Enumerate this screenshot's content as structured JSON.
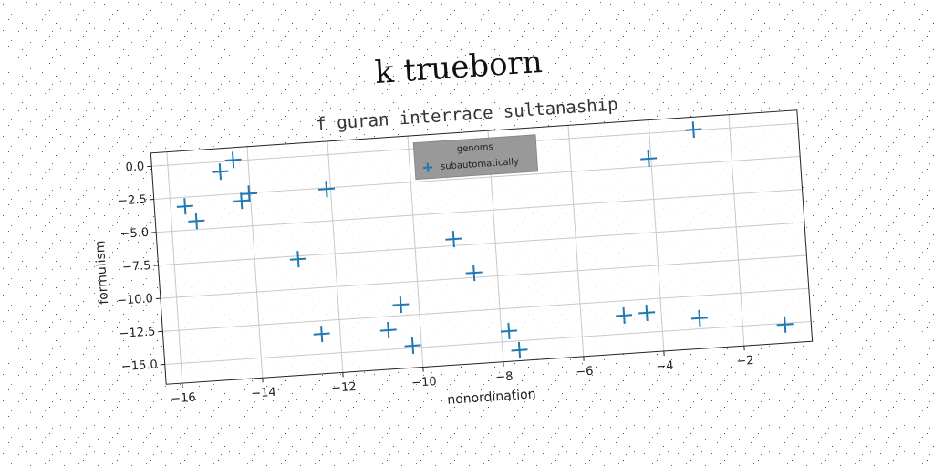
{
  "chart_data": {
    "type": "scatter",
    "title": "k trueborn",
    "subtitle": "f guran interrace sultanaship",
    "x_label": "nonordination",
    "y_label": "formulism",
    "legend_title": "genoms",
    "legend_loc": "upper center",
    "grid": true,
    "xlim": [
      -16.4,
      -0.3
    ],
    "ylim": [
      -16.5,
      1.0
    ],
    "xticks": [
      {
        "value": -16,
        "label": "−16"
      },
      {
        "value": -14,
        "label": "−14"
      },
      {
        "value": -12,
        "label": "−12"
      },
      {
        "value": -10,
        "label": "−10"
      },
      {
        "value": -8,
        "label": "−8"
      },
      {
        "value": -6,
        "label": "−6"
      },
      {
        "value": -4,
        "label": "−4"
      },
      {
        "value": -2,
        "label": "−2"
      }
    ],
    "yticks": [
      {
        "value": 0,
        "label": "0.0"
      },
      {
        "value": -2.5,
        "label": "−2.5"
      },
      {
        "value": -5,
        "label": "−5.0"
      },
      {
        "value": -7.5,
        "label": "−7.5"
      },
      {
        "value": -10,
        "label": "−10.0"
      },
      {
        "value": -12.5,
        "label": "−12.5"
      },
      {
        "value": -15,
        "label": "−15.0"
      }
    ],
    "series": [
      {
        "name": "subautomatically",
        "color": "#1f77b4",
        "x": [
          -15.64,
          -15.38,
          -14.71,
          -14.37,
          -14.23,
          -14.03,
          -12.92,
          -12.1,
          -12.46,
          -10.8,
          -10.45,
          -10.22,
          -9.03,
          -8.58,
          -7.81,
          -7.58,
          -4.93,
          -4.36,
          -4.06,
          -2.9,
          -3.06,
          -0.95
        ],
        "values": [
          -3.19,
          -4.35,
          -0.75,
          0.07,
          -3.06,
          -2.55,
          -7.74,
          -2.59,
          -13.49,
          -13.54,
          -11.68,
          -14.83,
          -7.0,
          -9.64,
          -14.21,
          -15.7,
          -13.61,
          -13.52,
          -1.92,
          0.05,
          -14.19,
          -15.1
        ]
      }
    ]
  }
}
